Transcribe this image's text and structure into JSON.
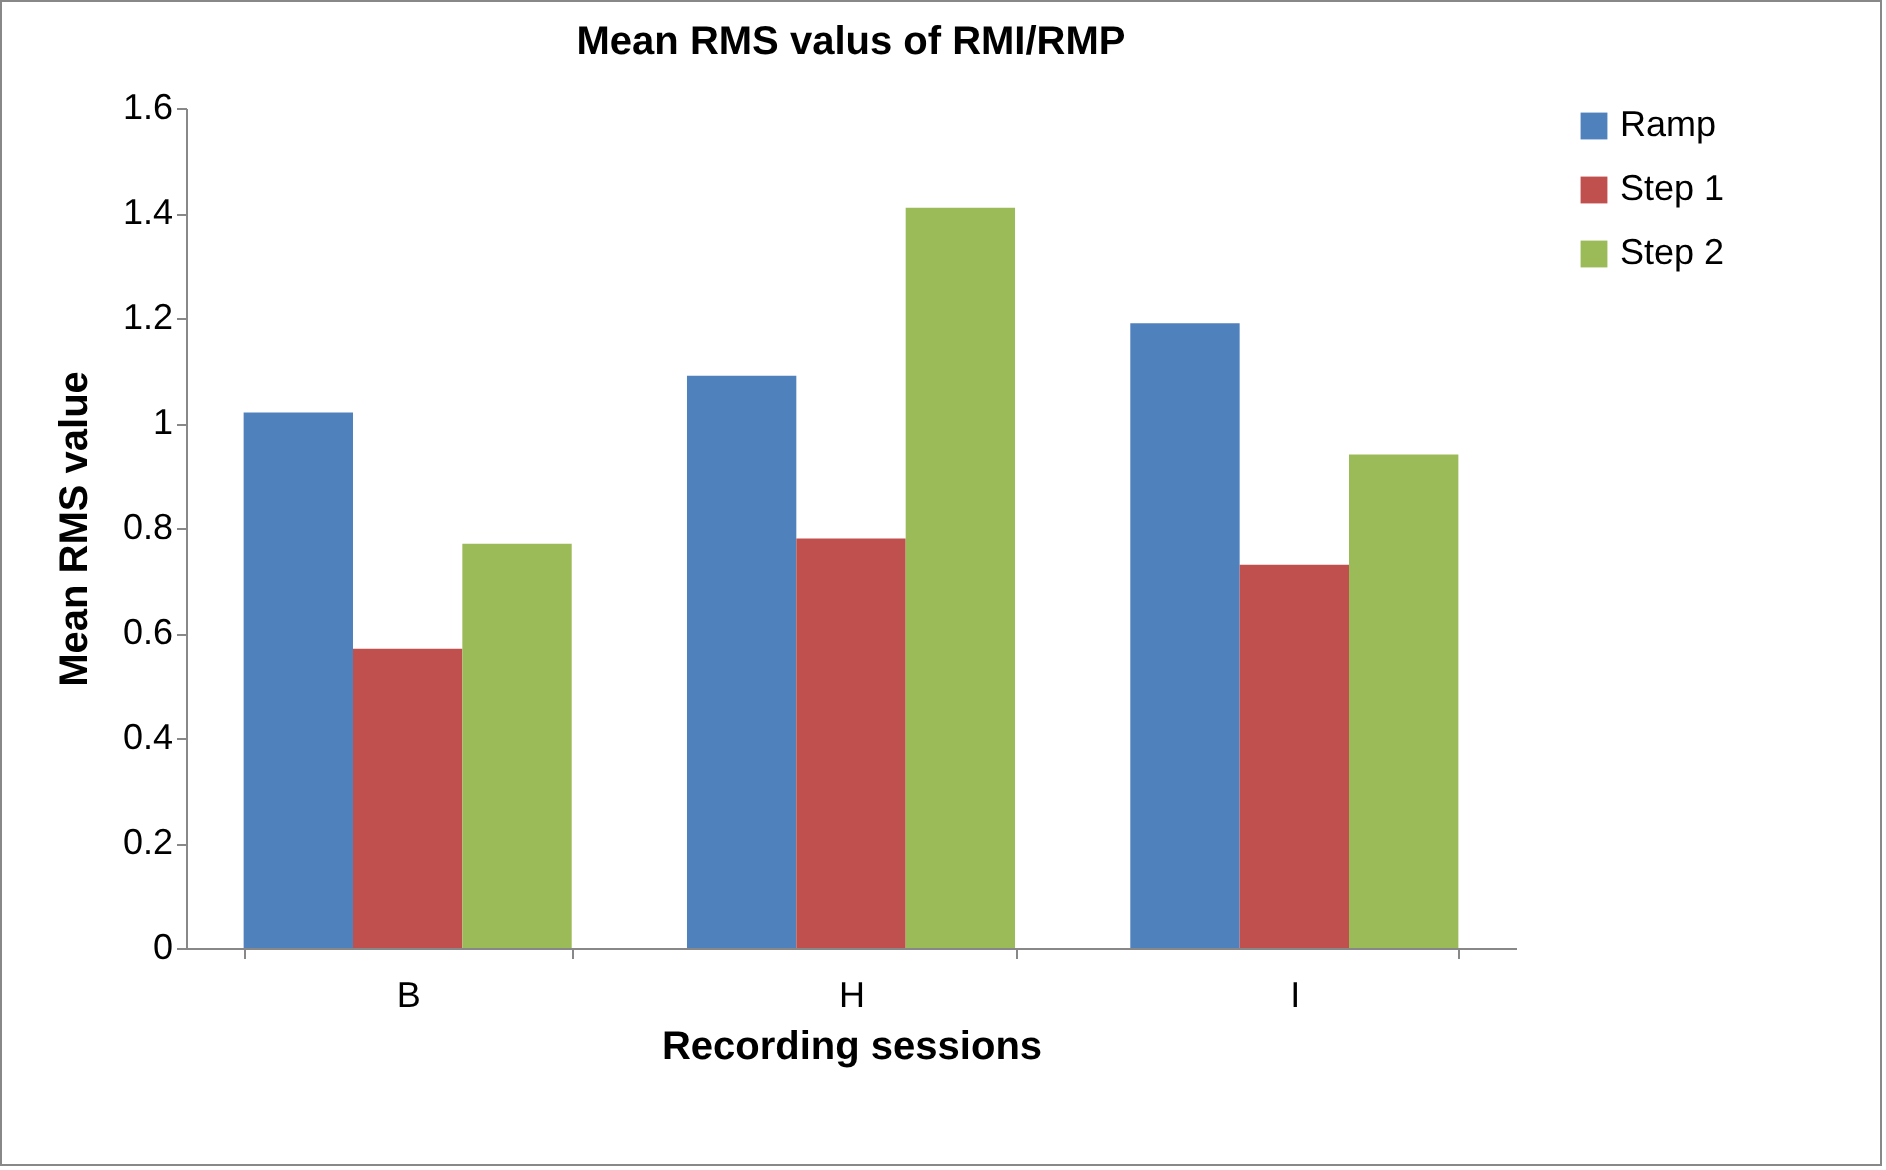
{
  "chart_data": {
    "type": "bar",
    "title": "Mean RMS valus of RMI/RMP",
    "xlabel": "Recording sessions",
    "ylabel": "Mean RMS value",
    "categories": [
      "B",
      "H",
      "I"
    ],
    "series": [
      {
        "name": "Ramp",
        "color": "#4f81bd",
        "values": [
          1.02,
          1.09,
          1.19
        ]
      },
      {
        "name": "Step 1",
        "color": "#c0504d",
        "values": [
          0.57,
          0.78,
          0.73
        ]
      },
      {
        "name": "Step 2",
        "color": "#9bbb59",
        "values": [
          0.77,
          1.41,
          0.94
        ]
      }
    ],
    "ylim": [
      0,
      1.6
    ],
    "yticks": [
      0,
      0.2,
      0.4,
      0.6,
      0.8,
      1,
      1.2,
      1.4,
      1.6
    ],
    "grid": false,
    "legend": "right"
  }
}
